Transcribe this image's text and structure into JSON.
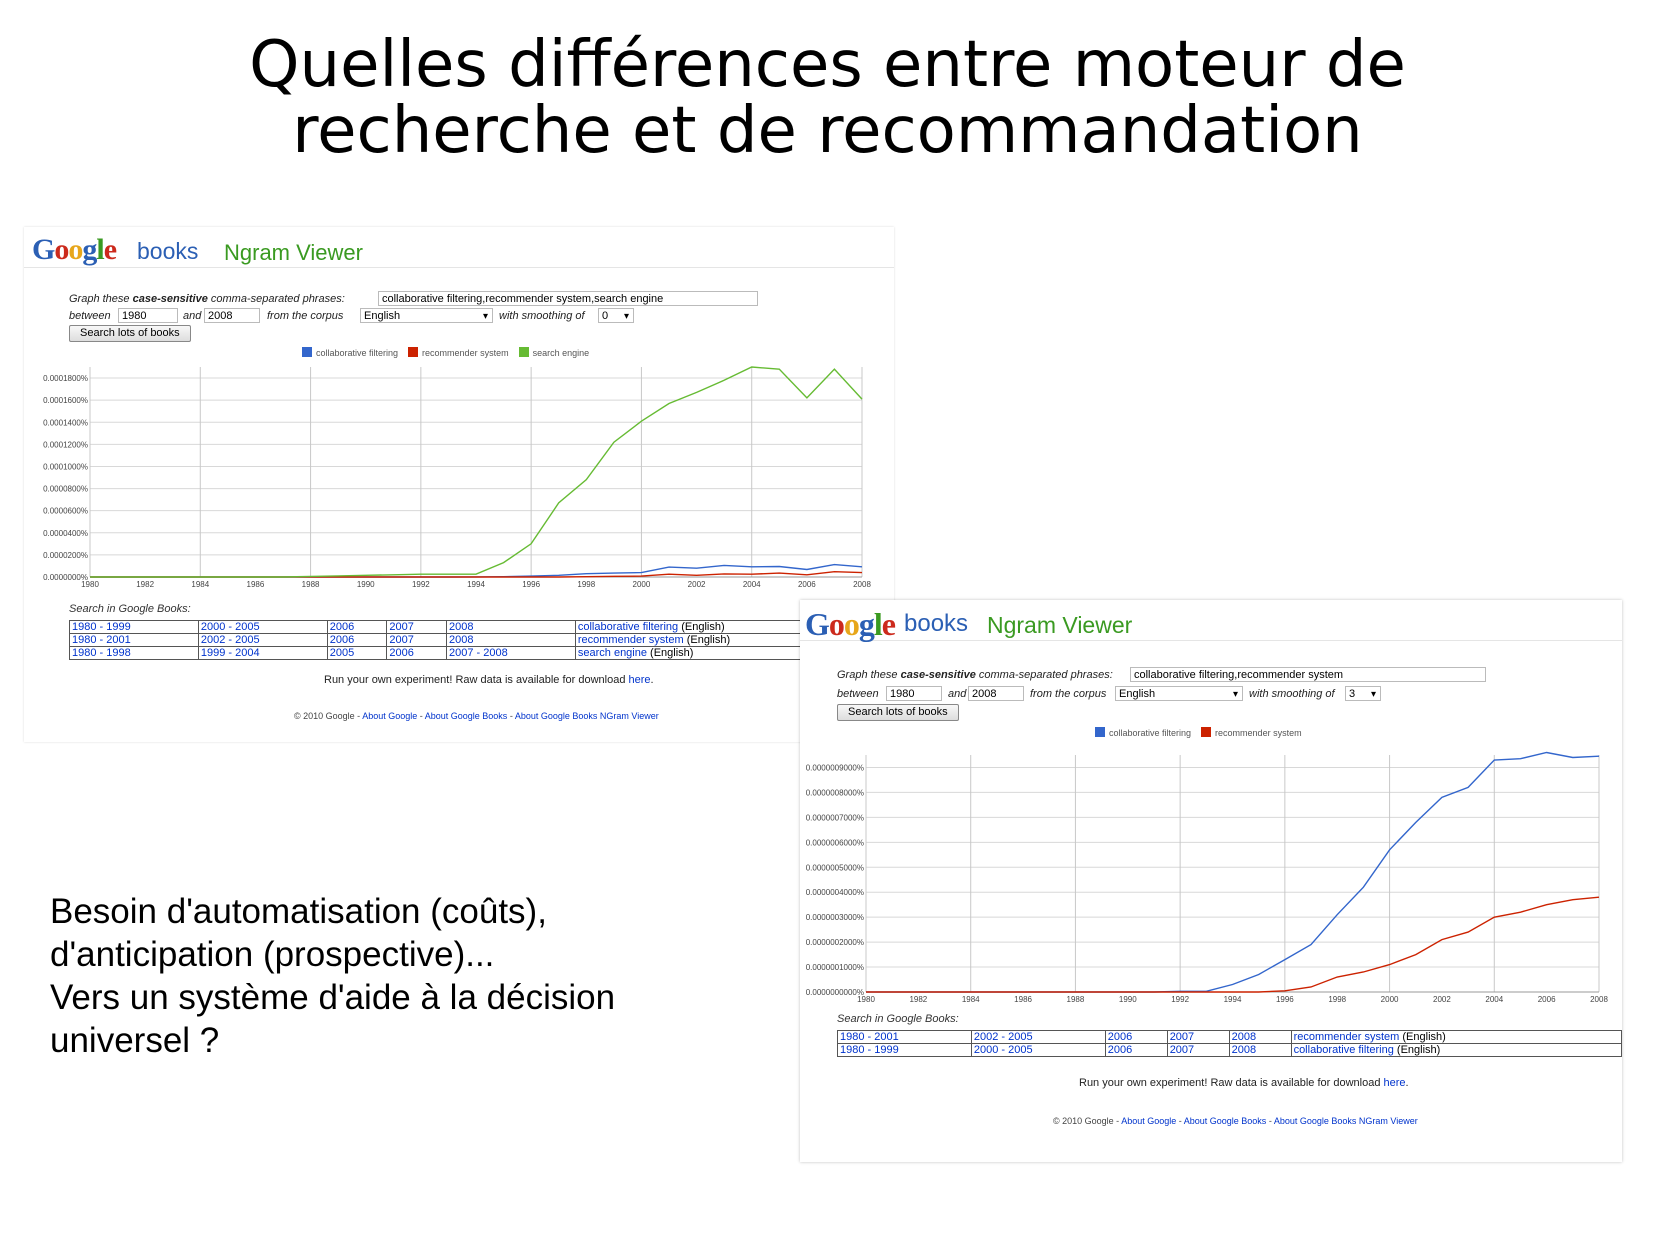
{
  "slide": {
    "title_line1": "Quelles différences entre moteur de",
    "title_line2": "recherche et de recommandation",
    "body_lines": [
      "Besoin d'automatisation (coûts),",
      "d'anticipation (prospective)...",
      "Vers un système d'aide à la décision",
      "universel ?"
    ]
  },
  "screens": [
    {
      "logo": {
        "G": "G",
        "o1": "o",
        "o2": "o",
        "g": "g",
        "l": "l",
        "e": "e"
      },
      "logo_books": "books",
      "app_title": "Ngram Viewer",
      "form": {
        "graph_prefix": "Graph these ",
        "graph_bold": "case-sensitive",
        "graph_suffix": " comma-separated phrases:",
        "phrases": "collaborative filtering,recommender system,search engine",
        "between_label": "between",
        "start_year": "1980",
        "and_label": "and",
        "end_year": "2008",
        "corpus_label": "from the corpus",
        "corpus": "English",
        "smoothing_label": "with smoothing of",
        "smoothing": "0",
        "search_button": "Search lots of books"
      },
      "search_in_label": "Search in Google Books:",
      "link_rows": [
        [
          "1980 - 1999",
          "2000 - 2005",
          "2006",
          "2007",
          "2008",
          "collaborative filtering"
        ],
        [
          "1980 - 2001",
          "2002 - 2005",
          "2006",
          "2007",
          "2008",
          "recommender system"
        ],
        [
          "1980 - 1998",
          "1999 - 2004",
          "2005",
          "2006",
          "2007 - 2008",
          "search engine"
        ]
      ],
      "lang_suffix": "(English)",
      "raw_text": "Run your own experiment! Raw data is available for download ",
      "raw_link": "here",
      "raw_end": ".",
      "footer": {
        "copy": "© 2010 Google - ",
        "link1": "About Google",
        "sep": " - ",
        "link2": "About Google Books",
        "link3": "About Google Books NGram Viewer"
      }
    },
    {
      "logo": {
        "G": "G",
        "o1": "o",
        "o2": "o",
        "g": "g",
        "l": "l",
        "e": "e"
      },
      "logo_books": "books",
      "app_title": "Ngram Viewer",
      "form": {
        "graph_prefix": "Graph these ",
        "graph_bold": "case-sensitive",
        "graph_suffix": " comma-separated phrases:",
        "phrases": "collaborative filtering,recommender system",
        "between_label": "between",
        "start_year": "1980",
        "and_label": "and",
        "end_year": "2008",
        "corpus_label": "from the corpus",
        "corpus": "English",
        "smoothing_label": "with smoothing of",
        "smoothing": "3",
        "search_button": "Search lots of books"
      },
      "search_in_label": "Search in Google Books:",
      "link_rows": [
        [
          "1980 - 2001",
          "2002 - 2005",
          "2006",
          "2007",
          "2008",
          "recommender system"
        ],
        [
          "1980 - 1999",
          "2000 - 2005",
          "2006",
          "2007",
          "2008",
          "collaborative filtering"
        ]
      ],
      "lang_suffix": "(English)",
      "raw_text": "Run your own experiment! Raw data is available for download ",
      "raw_link": "here",
      "raw_end": ".",
      "footer": {
        "copy": "© 2010 Google - ",
        "link1": "About Google",
        "sep": " - ",
        "link2": "About Google Books",
        "link3": "About Google Books NGram Viewer"
      }
    }
  ],
  "chart_data": [
    {
      "type": "line",
      "x": [
        1980,
        1981,
        1982,
        1983,
        1984,
        1985,
        1986,
        1987,
        1988,
        1989,
        1990,
        1991,
        1992,
        1993,
        1994,
        1995,
        1996,
        1997,
        1998,
        1999,
        2000,
        2001,
        2002,
        2003,
        2004,
        2005,
        2006,
        2007,
        2008
      ],
      "x_ticks": [
        "1980",
        "1982",
        "1984",
        "1986",
        "1988",
        "1990",
        "1992",
        "1994",
        "1996",
        "1998",
        "2000",
        "2002",
        "2004",
        "2006",
        "2008"
      ],
      "y_ticks": [
        "0.0000000%",
        "0.0000200%",
        "0.0000400%",
        "0.0000600%",
        "0.0000800%",
        "0.0001000%",
        "0.0001200%",
        "0.0001400%",
        "0.0001600%",
        "0.0001800%"
      ],
      "ylim": [
        0,
        0.00019
      ],
      "legend_position": "top",
      "grid": true,
      "series": [
        {
          "name": "collaborative filtering",
          "color": "#3366cc",
          "values": [
            0,
            0,
            0,
            0,
            0,
            0,
            0,
            0,
            0,
            0,
            0,
            0,
            0,
            0,
            1e-07,
            3e-07,
            8e-07,
            1.5e-06,
            3e-06,
            3.5e-06,
            4e-06,
            9e-06,
            8e-06,
            1.05e-05,
            9.2e-06,
            9.5e-06,
            6.8e-06,
            1.12e-05,
            9.2e-06
          ]
        },
        {
          "name": "recommender system",
          "color": "#cc2200",
          "values": [
            0,
            0,
            0,
            0,
            0,
            0,
            0,
            0,
            0,
            0,
            0,
            0,
            0,
            0,
            0,
            0,
            0,
            0,
            3e-07,
            6e-07,
            8e-07,
            2.5e-06,
            1.5e-06,
            2.8e-06,
            2.5e-06,
            3.5e-06,
            2e-06,
            4.8e-06,
            4e-06
          ]
        },
        {
          "name": "search engine",
          "color": "#66bb33",
          "values": [
            0,
            0,
            0,
            0,
            0,
            0,
            0,
            0,
            5e-07,
            1e-06,
            1.5e-06,
            2e-06,
            2.5e-06,
            2.5e-06,
            2.5e-06,
            1.3e-05,
            3e-05,
            6.7e-05,
            8.8e-05,
            0.000122,
            0.000141,
            0.000157,
            0.000167,
            0.000178,
            0.00019,
            0.000188,
            0.000162,
            0.000188,
            0.000161
          ]
        }
      ]
    },
    {
      "type": "line",
      "x": [
        1980,
        1981,
        1982,
        1983,
        1984,
        1985,
        1986,
        1987,
        1988,
        1989,
        1990,
        1991,
        1992,
        1993,
        1994,
        1995,
        1996,
        1997,
        1998,
        1999,
        2000,
        2001,
        2002,
        2003,
        2004,
        2005,
        2006,
        2007,
        2008
      ],
      "x_ticks": [
        "1980",
        "1982",
        "1984",
        "1986",
        "1988",
        "1990",
        "1992",
        "1994",
        "1996",
        "1998",
        "2000",
        "2002",
        "2004",
        "2006",
        "2008"
      ],
      "y_ticks": [
        "0.0000000000%",
        "0.0000001000%",
        "0.0000002000%",
        "0.0000003000%",
        "0.0000004000%",
        "0.0000005000%",
        "0.0000006000%",
        "0.0000007000%",
        "0.0000008000%",
        "0.0000009000%"
      ],
      "ylim": [
        0,
        9.5e-07
      ],
      "legend_position": "top",
      "grid": true,
      "series": [
        {
          "name": "collaborative filtering",
          "color": "#3366cc",
          "values": [
            0,
            0,
            0,
            0,
            0,
            0,
            0,
            0,
            0,
            0,
            0,
            0,
            3e-09,
            3e-09,
            3e-08,
            7e-08,
            1.3e-07,
            1.9e-07,
            3.1e-07,
            4.2e-07,
            5.7e-07,
            6.8e-07,
            7.8e-07,
            8.2e-07,
            9.3e-07,
            9.35e-07,
            9.6e-07,
            9.4e-07,
            9.45e-07
          ]
        },
        {
          "name": "recommender system",
          "color": "#cc2200",
          "values": [
            0,
            0,
            0,
            0,
            0,
            0,
            0,
            0,
            0,
            0,
            0,
            0,
            0,
            0,
            0,
            0,
            5e-09,
            2e-08,
            6e-08,
            8e-08,
            1.1e-07,
            1.5e-07,
            2.1e-07,
            2.4e-07,
            3e-07,
            3.2e-07,
            3.5e-07,
            3.7e-07,
            3.8e-07
          ]
        }
      ]
    }
  ]
}
